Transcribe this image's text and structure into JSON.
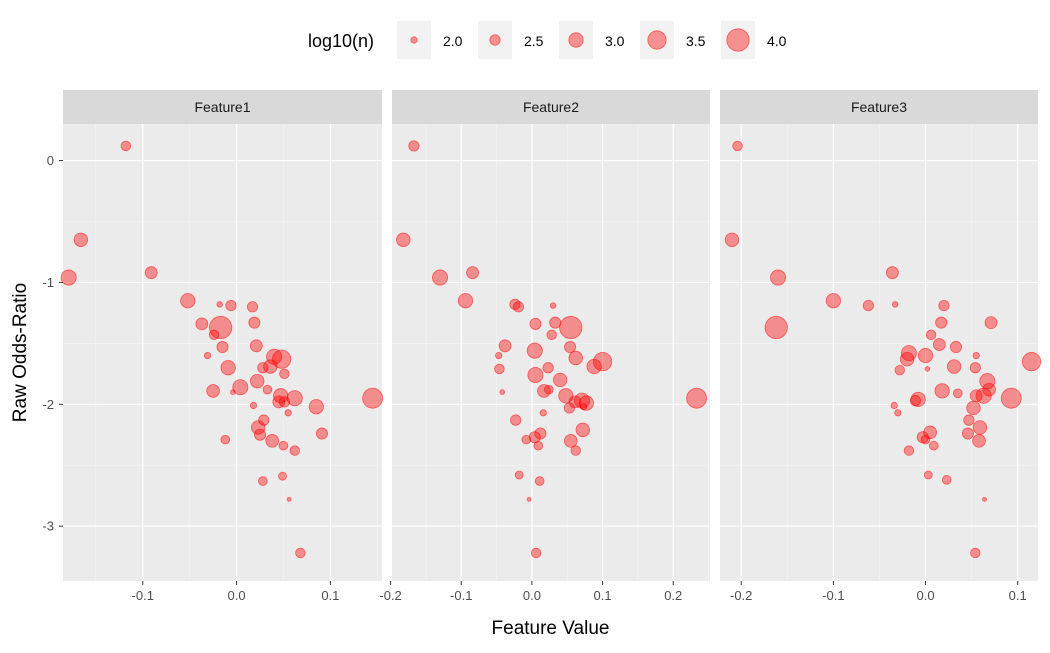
{
  "chart_data": {
    "type": "scatter",
    "xlabel": "Feature Value",
    "ylabel": "Raw Odds-Ratio",
    "y_ticks": [
      0,
      -1,
      -2,
      -3
    ],
    "y_tick_labels": [
      "0",
      "-1",
      "-2",
      "-3"
    ],
    "ylim": [
      -3.45,
      0.3
    ],
    "grid": true,
    "legend": {
      "title": "log10(n)",
      "position": "top",
      "values": [
        2.0,
        2.5,
        3.0,
        3.5,
        4.0
      ],
      "labels": [
        "2.0",
        "2.5",
        "3.0",
        "3.5",
        "4.0"
      ]
    },
    "point_color": "#ff0000",
    "point_fill_opacity": 0.4,
    "panel_background": "#ebebeb",
    "strip_background": "#d9d9d9",
    "panels": [
      {
        "title": "Feature1",
        "xlim": [
          -0.185,
          0.155
        ],
        "x_ticks": [
          -0.1,
          0.0,
          0.1
        ],
        "x_tick_labels": [
          "-0.1",
          "0.0",
          "0.1"
        ],
        "points": [
          {
            "x": -0.118,
            "y": 0.12,
            "s": 2.4
          },
          {
            "x": -0.166,
            "y": -0.65,
            "s": 2.9
          },
          {
            "x": -0.179,
            "y": -0.96,
            "s": 3.1
          },
          {
            "x": -0.091,
            "y": -0.92,
            "s": 2.7
          },
          {
            "x": -0.052,
            "y": -1.15,
            "s": 3.0
          },
          {
            "x": -0.018,
            "y": -1.18,
            "s": 1.9
          },
          {
            "x": -0.006,
            "y": -1.19,
            "s": 2.5
          },
          {
            "x": 0.017,
            "y": -1.2,
            "s": 2.5
          },
          {
            "x": -0.037,
            "y": -1.34,
            "s": 2.7
          },
          {
            "x": -0.017,
            "y": -1.37,
            "s": 4.0
          },
          {
            "x": 0.019,
            "y": -1.33,
            "s": 2.6
          },
          {
            "x": -0.024,
            "y": -1.43,
            "s": 2.4
          },
          {
            "x": 0.021,
            "y": -1.52,
            "s": 2.7
          },
          {
            "x": -0.015,
            "y": -1.53,
            "s": 2.6
          },
          {
            "x": -0.031,
            "y": -1.6,
            "s": 2.0
          },
          {
            "x": 0.04,
            "y": -1.61,
            "s": 3.1
          },
          {
            "x": 0.048,
            "y": -1.63,
            "s": 3.5
          },
          {
            "x": 0.036,
            "y": -1.69,
            "s": 2.9
          },
          {
            "x": -0.009,
            "y": -1.7,
            "s": 3.0
          },
          {
            "x": 0.028,
            "y": -1.7,
            "s": 2.5
          },
          {
            "x": 0.051,
            "y": -1.75,
            "s": 2.4
          },
          {
            "x": 0.022,
            "y": -1.81,
            "s": 2.9
          },
          {
            "x": 0.004,
            "y": -1.86,
            "s": 3.1
          },
          {
            "x": -0.025,
            "y": -1.89,
            "s": 2.8
          },
          {
            "x": -0.004,
            "y": -1.9,
            "s": 1.8
          },
          {
            "x": 0.033,
            "y": -1.88,
            "s": 2.3
          },
          {
            "x": 0.047,
            "y": -1.93,
            "s": 3.0
          },
          {
            "x": 0.062,
            "y": -1.95,
            "s": 3.1
          },
          {
            "x": 0.045,
            "y": -1.98,
            "s": 2.7
          },
          {
            "x": 0.051,
            "y": -1.98,
            "s": 2.5
          },
          {
            "x": 0.145,
            "y": -1.95,
            "s": 3.7
          },
          {
            "x": 0.085,
            "y": -2.02,
            "s": 3.0
          },
          {
            "x": 0.018,
            "y": -2.01,
            "s": 2.0
          },
          {
            "x": 0.055,
            "y": -2.07,
            "s": 2.0
          },
          {
            "x": 0.029,
            "y": -2.13,
            "s": 2.5
          },
          {
            "x": 0.023,
            "y": -2.19,
            "s": 2.9
          },
          {
            "x": 0.025,
            "y": -2.25,
            "s": 2.6
          },
          {
            "x": -0.012,
            "y": -2.29,
            "s": 2.3
          },
          {
            "x": 0.038,
            "y": -2.3,
            "s": 2.8
          },
          {
            "x": 0.091,
            "y": -2.24,
            "s": 2.6
          },
          {
            "x": 0.05,
            "y": -2.34,
            "s": 2.3
          },
          {
            "x": 0.062,
            "y": -2.38,
            "s": 2.4
          },
          {
            "x": 0.049,
            "y": -2.59,
            "s": 2.2
          },
          {
            "x": 0.028,
            "y": -2.63,
            "s": 2.3
          },
          {
            "x": 0.056,
            "y": -2.78,
            "s": 1.7
          },
          {
            "x": 0.068,
            "y": -3.22,
            "s": 2.4
          }
        ]
      },
      {
        "title": "Feature2",
        "xlim": [
          -0.198,
          0.252
        ],
        "x_ticks": [
          -0.2,
          -0.1,
          0.0,
          0.1,
          0.2
        ],
        "x_tick_labels": [
          "-0.2",
          "-0.1",
          "0.0",
          "0.1",
          "0.2"
        ],
        "points": [
          {
            "x": -0.167,
            "y": 0.12,
            "s": 2.5
          },
          {
            "x": -0.182,
            "y": -0.65,
            "s": 2.9
          },
          {
            "x": -0.13,
            "y": -0.96,
            "s": 3.1
          },
          {
            "x": -0.084,
            "y": -0.92,
            "s": 2.7
          },
          {
            "x": -0.094,
            "y": -1.15,
            "s": 3.0
          },
          {
            "x": -0.024,
            "y": -1.18,
            "s": 2.5
          },
          {
            "x": -0.019,
            "y": -1.2,
            "s": 2.5
          },
          {
            "x": 0.03,
            "y": -1.19,
            "s": 1.9
          },
          {
            "x": 0.005,
            "y": -1.34,
            "s": 2.6
          },
          {
            "x": 0.055,
            "y": -1.37,
            "s": 4.0
          },
          {
            "x": 0.033,
            "y": -1.33,
            "s": 2.6
          },
          {
            "x": 0.028,
            "y": -1.43,
            "s": 2.4
          },
          {
            "x": -0.038,
            "y": -1.52,
            "s": 2.7
          },
          {
            "x": 0.054,
            "y": -1.53,
            "s": 2.6
          },
          {
            "x": -0.047,
            "y": -1.6,
            "s": 2.0
          },
          {
            "x": 0.004,
            "y": -1.56,
            "s": 3.1
          },
          {
            "x": 0.1,
            "y": -1.65,
            "s": 3.5
          },
          {
            "x": 0.062,
            "y": -1.62,
            "s": 2.9
          },
          {
            "x": 0.088,
            "y": -1.69,
            "s": 3.0
          },
          {
            "x": 0.023,
            "y": -1.7,
            "s": 2.5
          },
          {
            "x": -0.046,
            "y": -1.71,
            "s": 2.4
          },
          {
            "x": 0.04,
            "y": -1.8,
            "s": 2.9
          },
          {
            "x": 0.005,
            "y": -1.76,
            "s": 3.1
          },
          {
            "x": 0.017,
            "y": -1.89,
            "s": 2.8
          },
          {
            "x": -0.042,
            "y": -1.9,
            "s": 1.8
          },
          {
            "x": 0.024,
            "y": -1.88,
            "s": 2.3
          },
          {
            "x": 0.048,
            "y": -1.93,
            "s": 3.0
          },
          {
            "x": 0.071,
            "y": -1.97,
            "s": 3.1
          },
          {
            "x": 0.061,
            "y": -1.98,
            "s": 2.7
          },
          {
            "x": 0.053,
            "y": -2.03,
            "s": 2.5
          },
          {
            "x": 0.233,
            "y": -1.95,
            "s": 3.7
          },
          {
            "x": 0.077,
            "y": -1.99,
            "s": 3.0
          },
          {
            "x": 0.073,
            "y": -2.02,
            "s": 2.0
          },
          {
            "x": 0.016,
            "y": -2.07,
            "s": 2.0
          },
          {
            "x": -0.023,
            "y": -2.13,
            "s": 2.5
          },
          {
            "x": 0.072,
            "y": -2.21,
            "s": 2.9
          },
          {
            "x": 0.012,
            "y": -2.24,
            "s": 2.6
          },
          {
            "x": -0.008,
            "y": -2.29,
            "s": 2.3
          },
          {
            "x": 0.055,
            "y": -2.3,
            "s": 2.8
          },
          {
            "x": 0.004,
            "y": -2.27,
            "s": 2.6
          },
          {
            "x": 0.009,
            "y": -2.34,
            "s": 2.3
          },
          {
            "x": 0.062,
            "y": -2.38,
            "s": 2.4
          },
          {
            "x": -0.018,
            "y": -2.58,
            "s": 2.2
          },
          {
            "x": 0.011,
            "y": -2.63,
            "s": 2.3
          },
          {
            "x": -0.004,
            "y": -2.78,
            "s": 1.7
          },
          {
            "x": 0.006,
            "y": -3.22,
            "s": 2.4
          }
        ]
      },
      {
        "title": "Feature3",
        "xlim": [
          -0.223,
          0.122
        ],
        "x_ticks": [
          -0.2,
          -0.1,
          0.0,
          0.1
        ],
        "x_tick_labels": [
          "-0.2",
          "-0.1",
          "0.0",
          "0.1"
        ],
        "points": [
          {
            "x": -0.204,
            "y": 0.12,
            "s": 2.4
          },
          {
            "x": -0.21,
            "y": -0.65,
            "s": 2.9
          },
          {
            "x": -0.16,
            "y": -0.96,
            "s": 3.1
          },
          {
            "x": -0.036,
            "y": -0.92,
            "s": 2.7
          },
          {
            "x": -0.1,
            "y": -1.15,
            "s": 3.0
          },
          {
            "x": -0.033,
            "y": -1.18,
            "s": 1.9
          },
          {
            "x": -0.062,
            "y": -1.19,
            "s": 2.5
          },
          {
            "x": 0.02,
            "y": -1.19,
            "s": 2.5
          },
          {
            "x": 0.071,
            "y": -1.33,
            "s": 2.7
          },
          {
            "x": -0.162,
            "y": -1.37,
            "s": 4.0
          },
          {
            "x": 0.017,
            "y": -1.33,
            "s": 2.6
          },
          {
            "x": 0.006,
            "y": -1.43,
            "s": 2.4
          },
          {
            "x": 0.015,
            "y": -1.51,
            "s": 2.7
          },
          {
            "x": 0.033,
            "y": -1.53,
            "s": 2.6
          },
          {
            "x": 0.055,
            "y": -1.6,
            "s": 2.0
          },
          {
            "x": -0.018,
            "y": -1.58,
            "s": 3.1
          },
          {
            "x": 0.115,
            "y": -1.65,
            "s": 3.5
          },
          {
            "x": -0.02,
            "y": -1.63,
            "s": 2.9
          },
          {
            "x": 0.0,
            "y": -1.6,
            "s": 3.0
          },
          {
            "x": 0.054,
            "y": -1.7,
            "s": 2.5
          },
          {
            "x": -0.028,
            "y": -1.72,
            "s": 2.4
          },
          {
            "x": 0.031,
            "y": -1.69,
            "s": 2.9
          },
          {
            "x": 0.067,
            "y": -1.81,
            "s": 3.1
          },
          {
            "x": 0.069,
            "y": -1.88,
            "s": 2.8
          },
          {
            "x": 0.002,
            "y": -1.71,
            "s": 1.8
          },
          {
            "x": 0.035,
            "y": -1.91,
            "s": 2.3
          },
          {
            "x": 0.018,
            "y": -1.89,
            "s": 3.0
          },
          {
            "x": 0.093,
            "y": -1.95,
            "s": 3.7
          },
          {
            "x": 0.063,
            "y": -1.93,
            "s": 3.1
          },
          {
            "x": 0.055,
            "y": -1.93,
            "s": 2.7
          },
          {
            "x": -0.008,
            "y": -1.96,
            "s": 3.0
          },
          {
            "x": -0.011,
            "y": -1.97,
            "s": 2.5
          },
          {
            "x": 0.052,
            "y": -2.03,
            "s": 2.9
          },
          {
            "x": -0.034,
            "y": -2.01,
            "s": 2.0
          },
          {
            "x": -0.03,
            "y": -2.07,
            "s": 2.0
          },
          {
            "x": 0.047,
            "y": -2.13,
            "s": 2.5
          },
          {
            "x": 0.059,
            "y": -2.19,
            "s": 2.9
          },
          {
            "x": 0.046,
            "y": -2.24,
            "s": 2.6
          },
          {
            "x": 0.005,
            "y": -2.23,
            "s": 2.8
          },
          {
            "x": 0.0,
            "y": -2.29,
            "s": 2.3
          },
          {
            "x": 0.058,
            "y": -2.3,
            "s": 2.8
          },
          {
            "x": -0.003,
            "y": -2.27,
            "s": 2.6
          },
          {
            "x": 0.009,
            "y": -2.34,
            "s": 2.3
          },
          {
            "x": -0.018,
            "y": -2.38,
            "s": 2.4
          },
          {
            "x": 0.003,
            "y": -2.58,
            "s": 2.2
          },
          {
            "x": 0.023,
            "y": -2.62,
            "s": 2.3
          },
          {
            "x": 0.064,
            "y": -2.78,
            "s": 1.7
          },
          {
            "x": 0.054,
            "y": -3.22,
            "s": 2.4
          }
        ]
      }
    ]
  }
}
